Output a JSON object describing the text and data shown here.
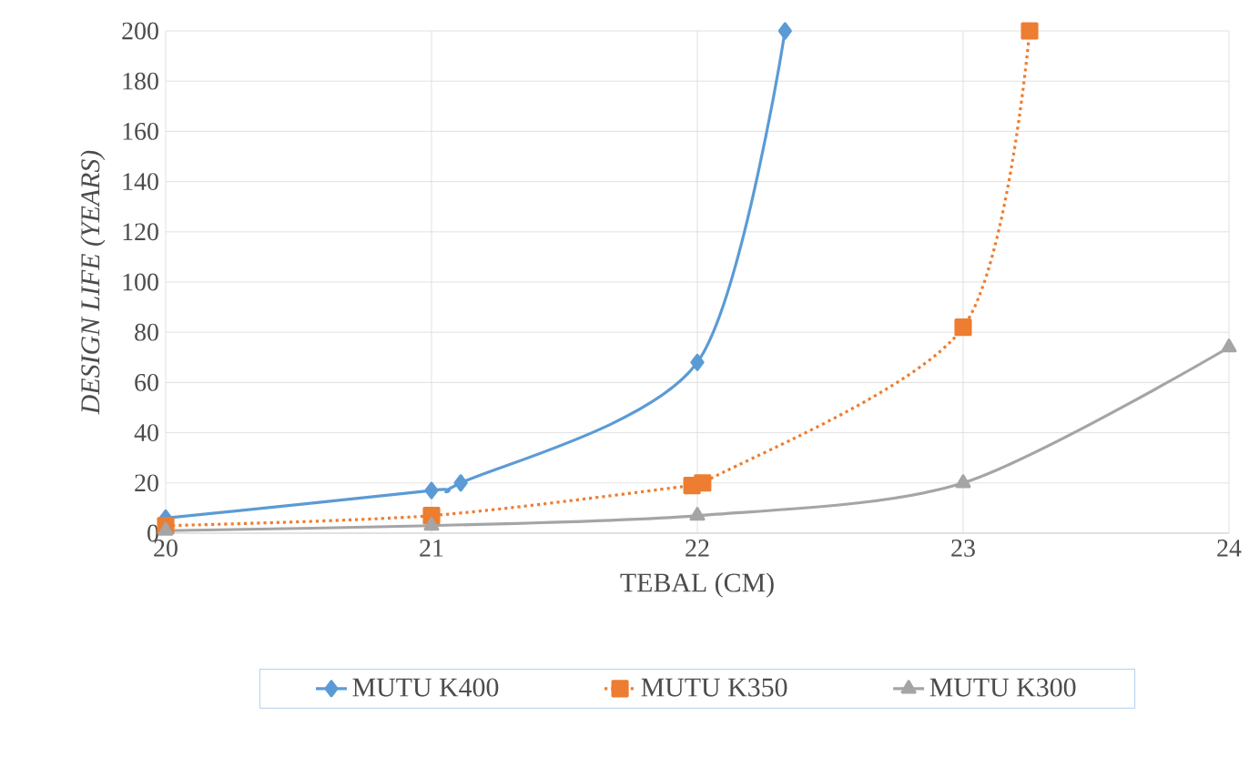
{
  "chart_data": {
    "type": "line",
    "xlabel": "TEBAL (CM)",
    "ylabel": "*DESIGN LIFE (YEARS)*",
    "series": [
      {
        "name": "MUTU K400",
        "color": "#5b9bd5",
        "marker": "diamond",
        "line_style": "solid",
        "x": [
          20,
          21,
          21.11,
          22,
          22.33
        ],
        "values": [
          6,
          17,
          20,
          68,
          200
        ]
      },
      {
        "name": "MUTU K350",
        "color": "#ed7d31",
        "marker": "square",
        "line_style": "dotted",
        "x": [
          20,
          21,
          21.98,
          22.02,
          23,
          23.25
        ],
        "values": [
          3,
          7,
          19,
          20,
          82,
          200
        ]
      },
      {
        "name": "MUTU K300",
        "color": "#a5a5a5",
        "marker": "triangle",
        "line_style": "solid",
        "x": [
          20,
          21,
          22,
          23,
          24
        ],
        "values": [
          1,
          3,
          7,
          20,
          74
        ]
      }
    ],
    "xlim": [
      20,
      24
    ],
    "xticks": [
      20,
      21,
      22,
      23,
      24
    ],
    "ylim": [
      0,
      200
    ],
    "yticks": [
      0,
      20,
      40,
      60,
      80,
      100,
      120,
      140,
      160,
      180,
      200
    ],
    "grid": true,
    "legend": "bottom"
  }
}
